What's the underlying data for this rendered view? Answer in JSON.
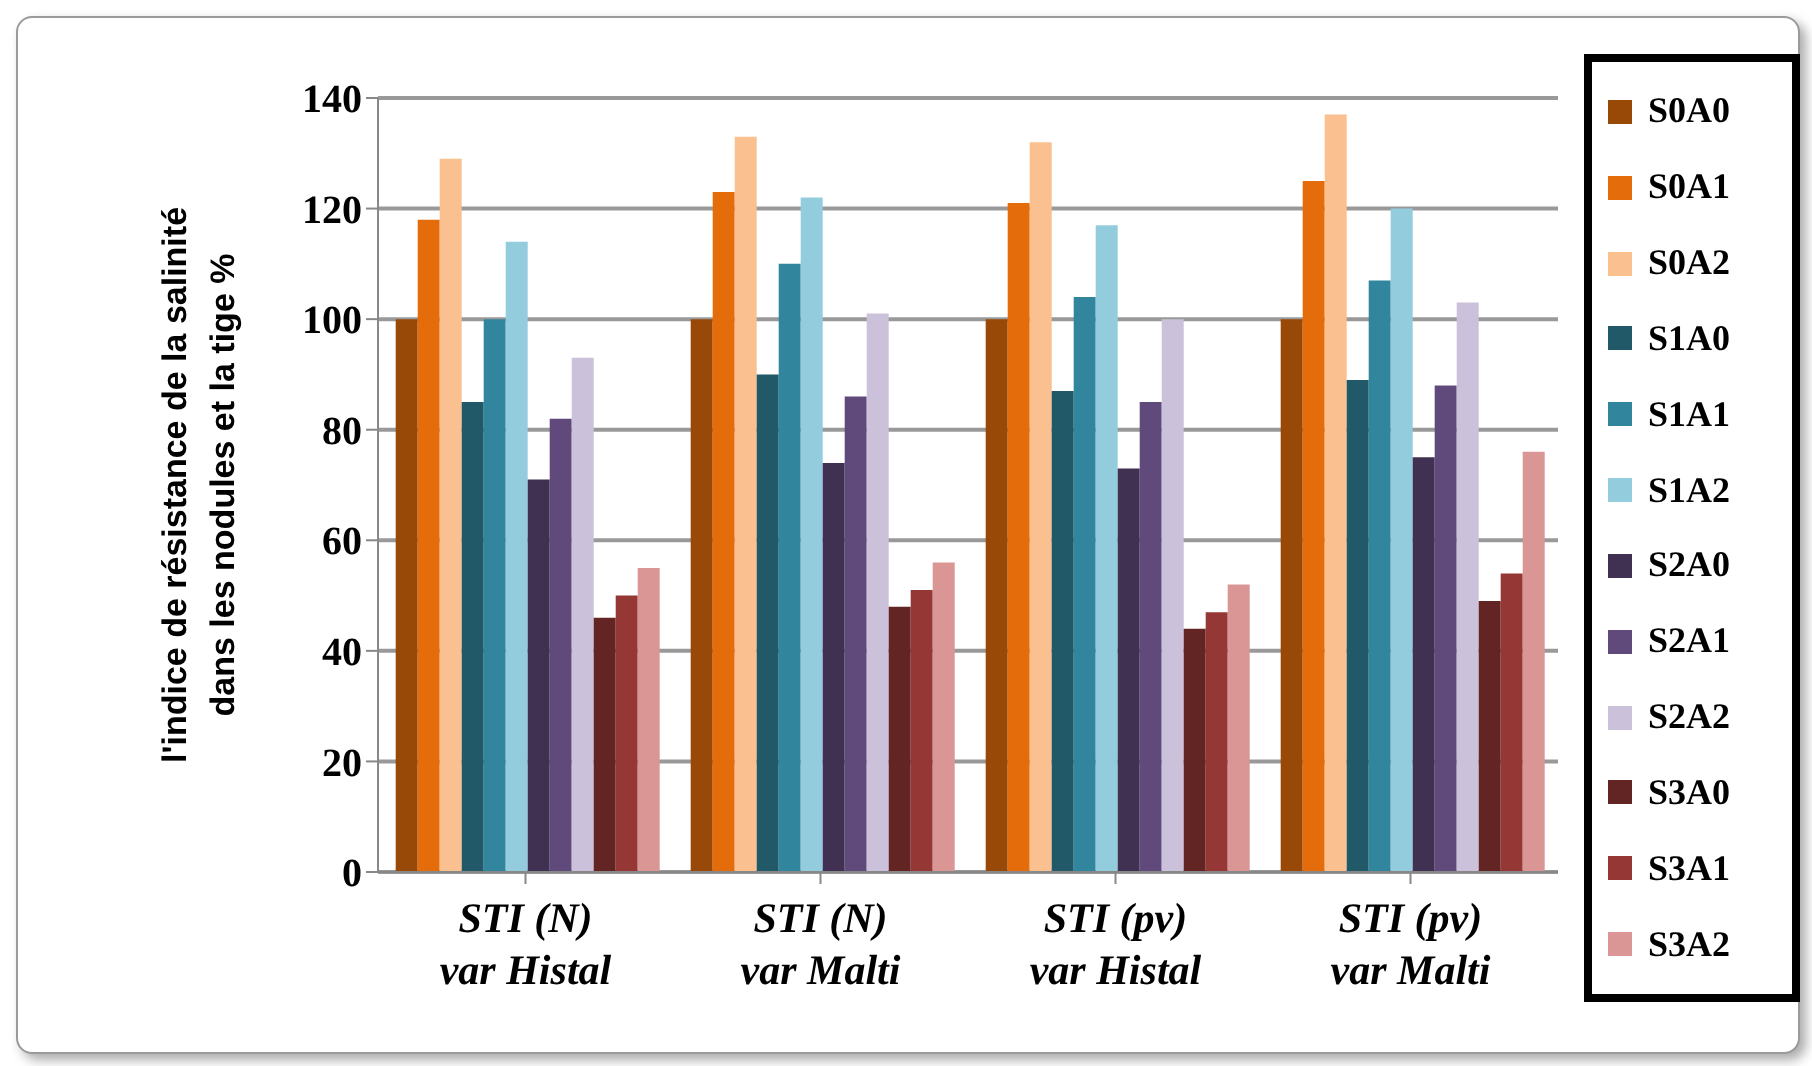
{
  "chart_data": {
    "type": "bar",
    "ylabel": "l'indice de résistance de la salinité\ndans les nodules et la tige %",
    "categories": [
      "STI (N)\nvar Histal",
      "STI (N)\nvar Malti",
      "STI (pv)\nvar Histal",
      "STI (pv)\nvar Malti"
    ],
    "ylim": [
      0,
      140
    ],
    "yticks": [
      0,
      20,
      40,
      60,
      80,
      100,
      120,
      140
    ],
    "grid": "y",
    "legend": "right",
    "series": [
      {
        "name": "S0A0",
        "color": "#984807",
        "values": [
          100,
          100,
          100,
          100
        ]
      },
      {
        "name": "S0A1",
        "color": "#e46c0a",
        "values": [
          118,
          123,
          121,
          125
        ]
      },
      {
        "name": "S0A2",
        "color": "#fac090",
        "values": [
          129,
          133,
          132,
          137
        ]
      },
      {
        "name": "S1A0",
        "color": "#215968",
        "values": [
          85,
          90,
          87,
          89
        ]
      },
      {
        "name": "S1A1",
        "color": "#31859c",
        "values": [
          100,
          110,
          104,
          107
        ]
      },
      {
        "name": "S1A2",
        "color": "#93cddd",
        "values": [
          114,
          122,
          117,
          120
        ]
      },
      {
        "name": "S2A0",
        "color": "#403152",
        "values": [
          71,
          74,
          73,
          75
        ]
      },
      {
        "name": "S2A1",
        "color": "#604a7b",
        "values": [
          82,
          86,
          85,
          88
        ]
      },
      {
        "name": "S2A2",
        "color": "#ccc1da",
        "values": [
          93,
          101,
          100,
          103
        ]
      },
      {
        "name": "S3A0",
        "color": "#632523",
        "values": [
          46,
          48,
          44,
          49
        ]
      },
      {
        "name": "S3A1",
        "color": "#953735",
        "values": [
          50,
          51,
          47,
          54
        ]
      },
      {
        "name": "S3A2",
        "color": "#d99694",
        "values": [
          55,
          56,
          52,
          76
        ]
      }
    ]
  }
}
